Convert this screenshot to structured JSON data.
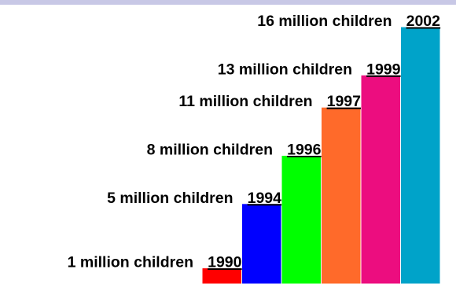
{
  "chart_data": {
    "type": "bar",
    "categories": [
      "1990",
      "1994",
      "1996",
      "1997",
      "1999",
      "2002"
    ],
    "values": [
      1,
      5,
      8,
      11,
      13,
      16
    ],
    "value_labels": [
      "1 million children",
      "5 million children",
      "8 million children",
      "11 million children",
      "13 million children",
      "16 million children"
    ],
    "colors": [
      "#ff0000",
      "#0000ff",
      "#00ff00",
      "#ff6a2a",
      "#ec0d7f",
      "#00a3c9"
    ],
    "ylim": [
      0,
      16
    ],
    "grid": false,
    "legend": "none"
  },
  "frame": {
    "top_border_color": "#c8c8e6",
    "bar_border_color": "#ffffff"
  }
}
